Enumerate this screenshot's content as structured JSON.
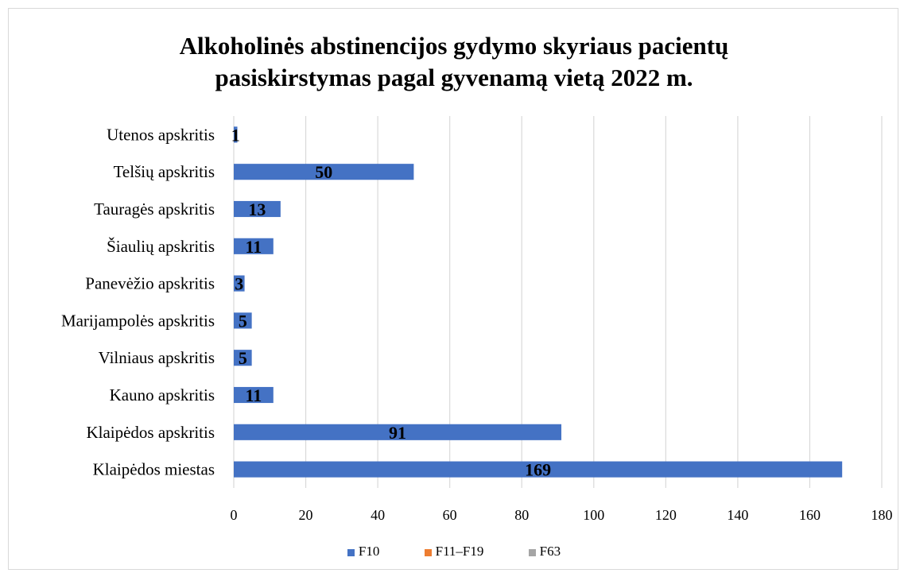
{
  "chart_data": {
    "type": "bar",
    "orientation": "horizontal",
    "stacked": true,
    "title_lines": [
      "Alkoholinės abstinencijos gydymo  skyriaus pacientų",
      "pasiskirstymas pagal gyvenamą vietą 2022 m."
    ],
    "categories": [
      "Utenos apskritis",
      "Telšių apskritis",
      "Tauragės apskritis",
      "Šiaulių apskritis",
      "Panevėžio apskritis",
      "Marijampolės apskritis",
      "Vilniaus apskritis",
      "Kauno apskritis",
      "Klaipėdos apskritis",
      "Klaipėdos miestas"
    ],
    "series": [
      {
        "name": "F10",
        "color": "#4472c4",
        "values": [
          1,
          50,
          13,
          11,
          3,
          5,
          5,
          11,
          91,
          169
        ]
      },
      {
        "name": "F11–F19",
        "color": "#ed7d31",
        "values": [
          0,
          0,
          0,
          0,
          0,
          0,
          0,
          0,
          0,
          0
        ]
      },
      {
        "name": "F63",
        "color": "#a5a5a5",
        "values": [
          0,
          0,
          0,
          0,
          0,
          0,
          0,
          0,
          0,
          0
        ]
      }
    ],
    "data_labels": [
      "1",
      "50",
      "13",
      "11",
      "3",
      "5",
      "5",
      "11",
      "91",
      "169"
    ],
    "x_ticks": [
      "0",
      "20",
      "40",
      "60",
      "80",
      "100",
      "120",
      "140",
      "160",
      "180"
    ],
    "xlim": [
      0,
      180
    ],
    "grid": true,
    "legend_position": "bottom"
  }
}
